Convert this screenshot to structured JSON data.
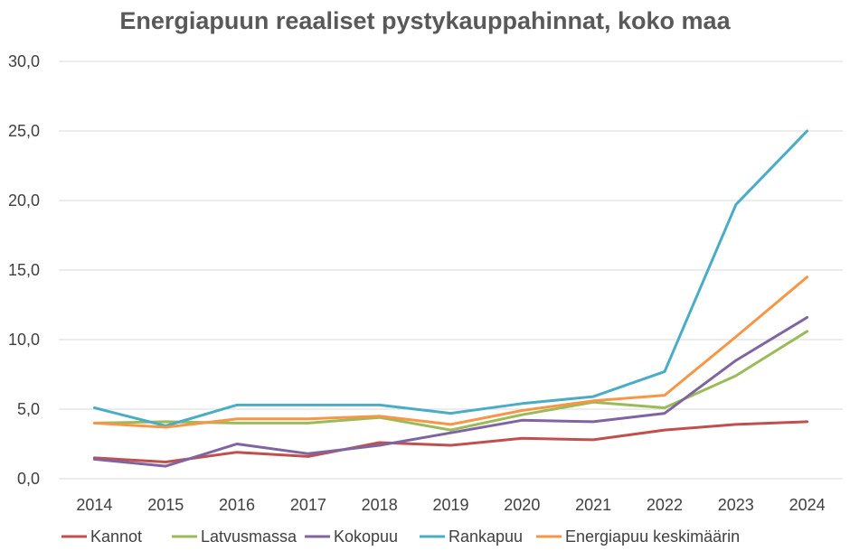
{
  "chart_data": {
    "type": "line",
    "title": "Energiapuun reaaliset pystykauppahinnat, koko maa",
    "xlabel": "",
    "ylabel": "",
    "categories": [
      "2014",
      "2015",
      "2016",
      "2017",
      "2018",
      "2019",
      "2020",
      "2021",
      "2022",
      "2023",
      "2024"
    ],
    "ylim": [
      0,
      30
    ],
    "yticks": [
      "0,0",
      "5,0",
      "10,0",
      "15,0",
      "20,0",
      "25,0",
      "30,0"
    ],
    "grid": true,
    "legend_position": "bottom",
    "series": [
      {
        "name": "Kannot",
        "color": "#c0504d",
        "values": [
          1.5,
          1.2,
          1.9,
          1.6,
          2.6,
          2.4,
          2.9,
          2.8,
          3.5,
          3.9,
          4.1
        ]
      },
      {
        "name": "Latvusmassa",
        "color": "#9bbb59",
        "values": [
          4.0,
          4.1,
          4.0,
          4.0,
          4.4,
          3.5,
          4.6,
          5.5,
          5.1,
          7.4,
          10.6
        ]
      },
      {
        "name": "Kokopuu",
        "color": "#8064a2",
        "values": [
          1.4,
          0.9,
          2.5,
          1.8,
          2.4,
          3.3,
          4.2,
          4.1,
          4.7,
          8.5,
          11.6
        ]
      },
      {
        "name": "Rankapuu",
        "color": "#4bacc6",
        "values": [
          5.1,
          3.8,
          5.3,
          5.3,
          5.3,
          4.7,
          5.4,
          5.9,
          7.7,
          19.7,
          25.0
        ]
      },
      {
        "name": "Energiapuu keskimäärin",
        "color": "#f79646",
        "values": [
          4.0,
          3.7,
          4.3,
          4.3,
          4.5,
          3.9,
          4.9,
          5.6,
          6.0,
          10.2,
          14.5
        ]
      }
    ]
  }
}
